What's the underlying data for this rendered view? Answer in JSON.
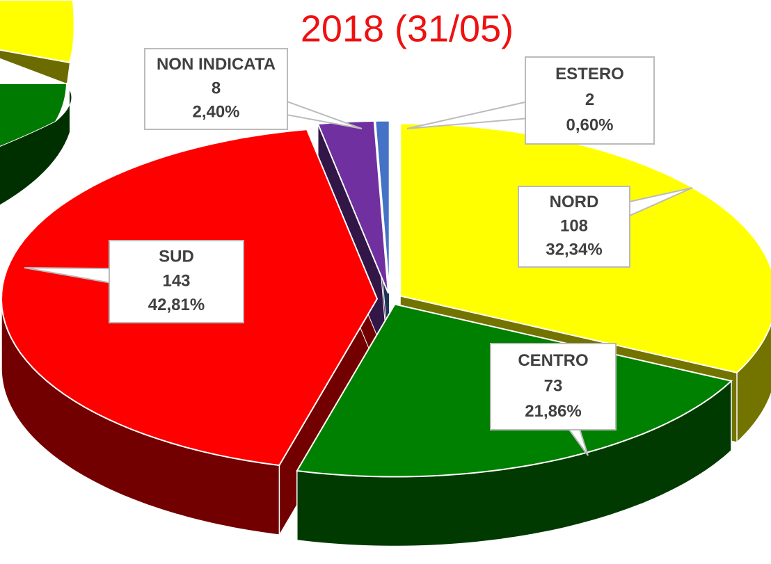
{
  "chart_data": {
    "type": "pie3d",
    "title": "2018 (31/05)",
    "categories": [
      "NORD",
      "CENTRO",
      "SUD",
      "NON INDICATA",
      "ESTERO"
    ],
    "values": [
      108,
      73,
      143,
      8,
      2
    ],
    "percent_labels": [
      "32,34%",
      "21,86%",
      "42,81%",
      "2,40%",
      "0,60%"
    ],
    "colors": [
      "#ffff00",
      "#008000",
      "#ff0000",
      "#7030a0",
      "#4472c4"
    ]
  }
}
